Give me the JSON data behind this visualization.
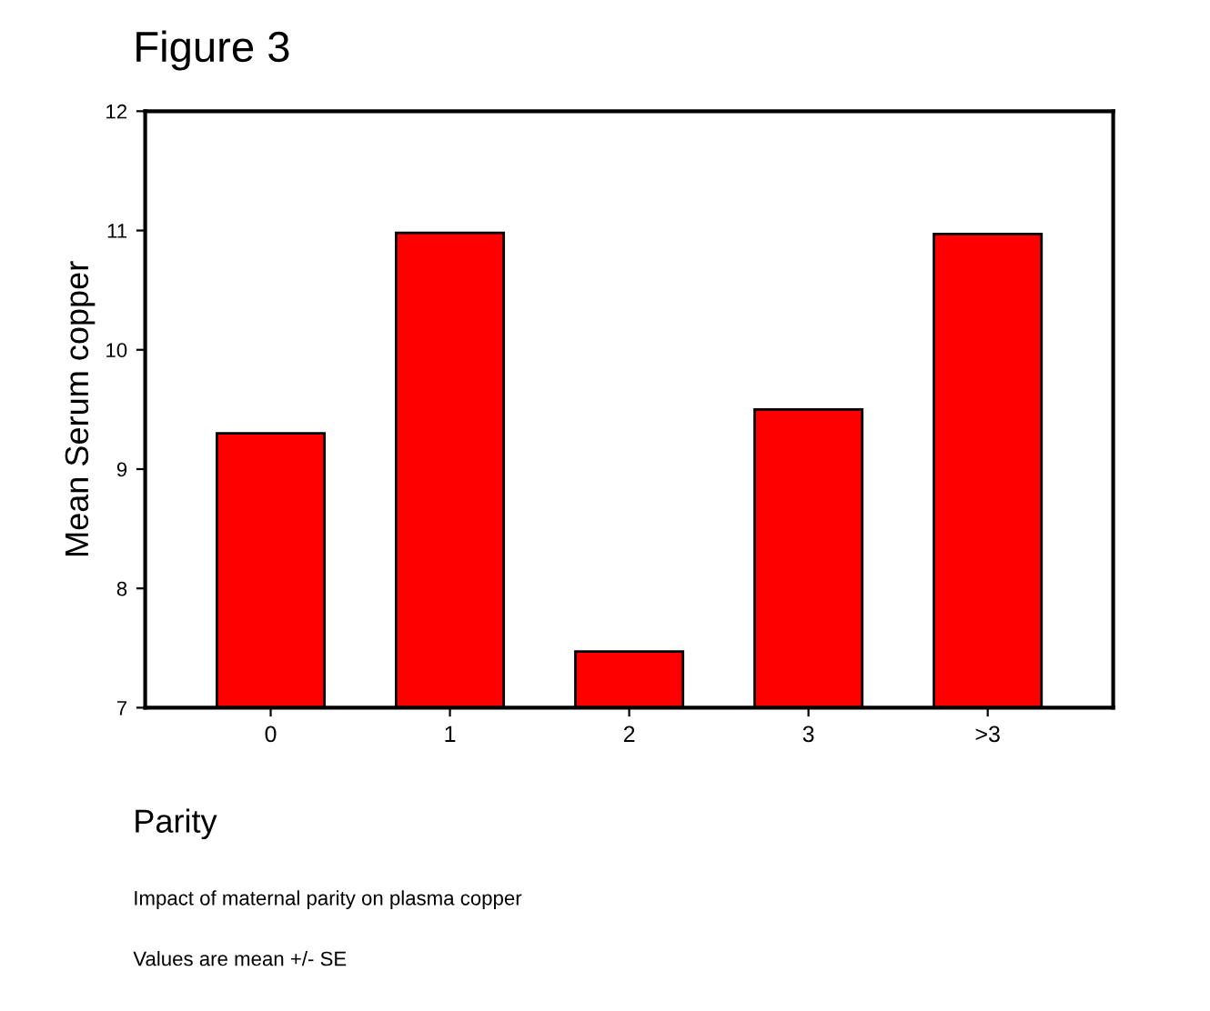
{
  "chart_data": {
    "type": "bar",
    "title": "Figure 3",
    "categories": [
      "0",
      "1",
      "2",
      "3",
      ">3"
    ],
    "values": [
      9.3,
      10.98,
      7.47,
      9.5,
      10.97
    ],
    "color": "#ff0000",
    "ylim": [
      7,
      12
    ],
    "yticks": [
      7,
      8,
      9,
      10,
      11,
      12
    ],
    "xlabel": "Parity",
    "ylabel": "Mean Serum copper",
    "annotations": [
      "Impact of maternal parity on plasma copper",
      "Values are mean +/- SE"
    ],
    "grid": false,
    "legend": false
  }
}
